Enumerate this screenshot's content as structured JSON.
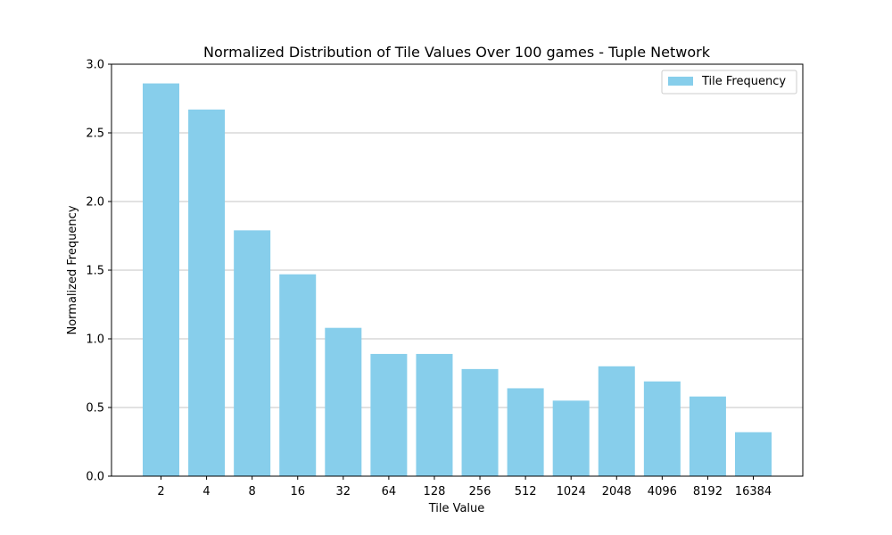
{
  "chart_data": {
    "type": "bar",
    "title": "Normalized Distribution of Tile Values Over 100 games - Tuple Network",
    "xlabel": "Tile Value",
    "ylabel": "Normalized Frequency",
    "categories": [
      "2",
      "4",
      "8",
      "16",
      "32",
      "64",
      "128",
      "256",
      "512",
      "1024",
      "2048",
      "4096",
      "8192",
      "16384"
    ],
    "series": [
      {
        "name": "Tile Frequency",
        "values": [
          2.86,
          2.67,
          1.79,
          1.47,
          1.08,
          0.89,
          0.89,
          0.78,
          0.64,
          0.55,
          0.8,
          0.69,
          0.58,
          0.32
        ],
        "color": "#87ceeb"
      }
    ],
    "ylim": [
      0,
      3.0
    ],
    "yticks": [
      "0.0",
      "0.5",
      "1.0",
      "1.5",
      "2.0",
      "2.5",
      "3.0"
    ],
    "grid": "y-axis",
    "legend_position": "top-right"
  }
}
